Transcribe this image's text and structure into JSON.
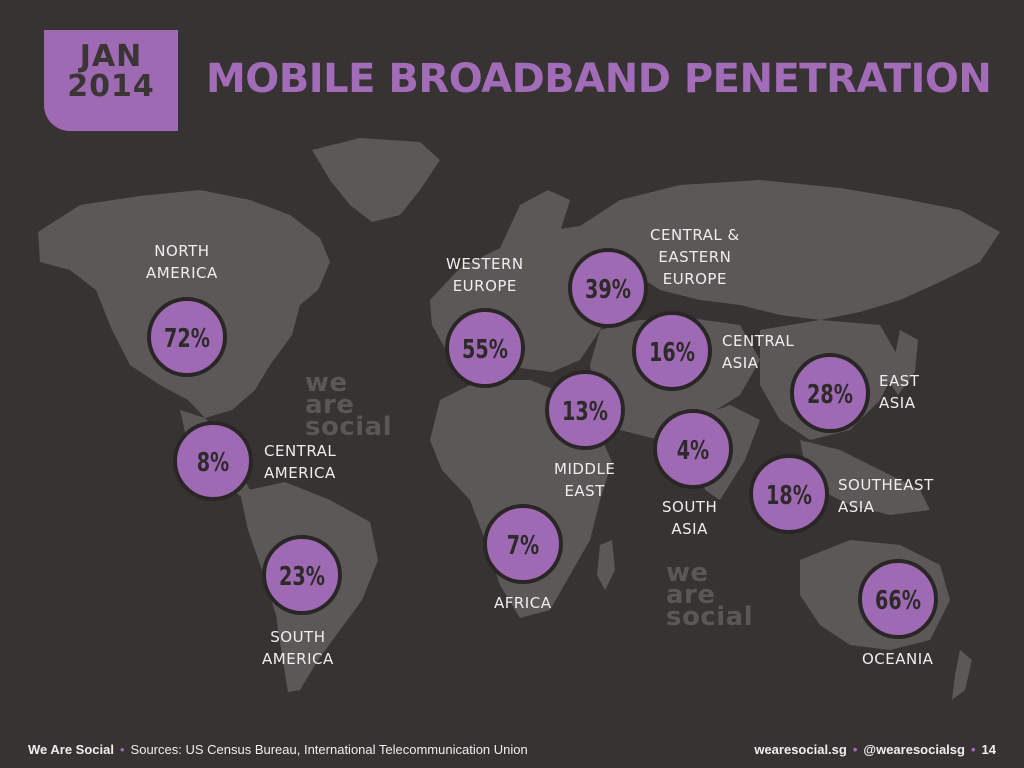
{
  "header": {
    "month": "JAN",
    "year": "2014",
    "title": "MOBILE BROADBAND PENETRATION"
  },
  "colors": {
    "background": "#383333",
    "land": "#5d5858",
    "accent": "#9e6ab4",
    "bubble_border": "#2b2626",
    "bubble_text": "#2e2a2a"
  },
  "chart_data": {
    "type": "table",
    "title": "MOBILE BROADBAND PENETRATION",
    "unit": "%",
    "regions": [
      {
        "name": "NORTH AMERICA",
        "value": 72,
        "label": "72%"
      },
      {
        "name": "CENTRAL AMERICA",
        "value": 8,
        "label": "8%"
      },
      {
        "name": "SOUTH AMERICA",
        "value": 23,
        "label": "23%"
      },
      {
        "name": "WESTERN EUROPE",
        "value": 55,
        "label": "55%"
      },
      {
        "name": "CENTRAL & EASTERN EUROPE",
        "value": 39,
        "label": "39%"
      },
      {
        "name": "CENTRAL ASIA",
        "value": 16,
        "label": "16%"
      },
      {
        "name": "MIDDLE EAST",
        "value": 13,
        "label": "13%"
      },
      {
        "name": "AFRICA",
        "value": 7,
        "label": "7%"
      },
      {
        "name": "SOUTH ASIA",
        "value": 4,
        "label": "4%"
      },
      {
        "name": "EAST ASIA",
        "value": 28,
        "label": "28%"
      },
      {
        "name": "SOUTHEAST ASIA",
        "value": 18,
        "label": "18%"
      },
      {
        "name": "OCEANIA",
        "value": 66,
        "label": "66%"
      }
    ]
  },
  "labels": {
    "north_america": [
      "NORTH",
      "AMERICA"
    ],
    "central_america": [
      "CENTRAL",
      "AMERICA"
    ],
    "south_america": [
      "SOUTH",
      "AMERICA"
    ],
    "western_europe": [
      "WESTERN",
      "EUROPE"
    ],
    "central_eastern_europe": [
      "CENTRAL &",
      "EASTERN",
      "EUROPE"
    ],
    "central_asia": [
      "CENTRAL",
      "ASIA"
    ],
    "middle_east": [
      "MIDDLE",
      "EAST"
    ],
    "africa": [
      "AFRICA"
    ],
    "south_asia": [
      "SOUTH",
      "ASIA"
    ],
    "east_asia": [
      "EAST",
      "ASIA"
    ],
    "southeast_asia": [
      "SOUTHEAST",
      "ASIA"
    ],
    "oceania": [
      "OCEANIA"
    ]
  },
  "watermark": [
    "we",
    "are",
    "social"
  ],
  "footer": {
    "brand": "We Are Social",
    "sources": "Sources: US Census Bureau, International Telecommunication Union",
    "website": "wearesocial.sg",
    "handle": "@wearesocialsg",
    "page": "14"
  }
}
